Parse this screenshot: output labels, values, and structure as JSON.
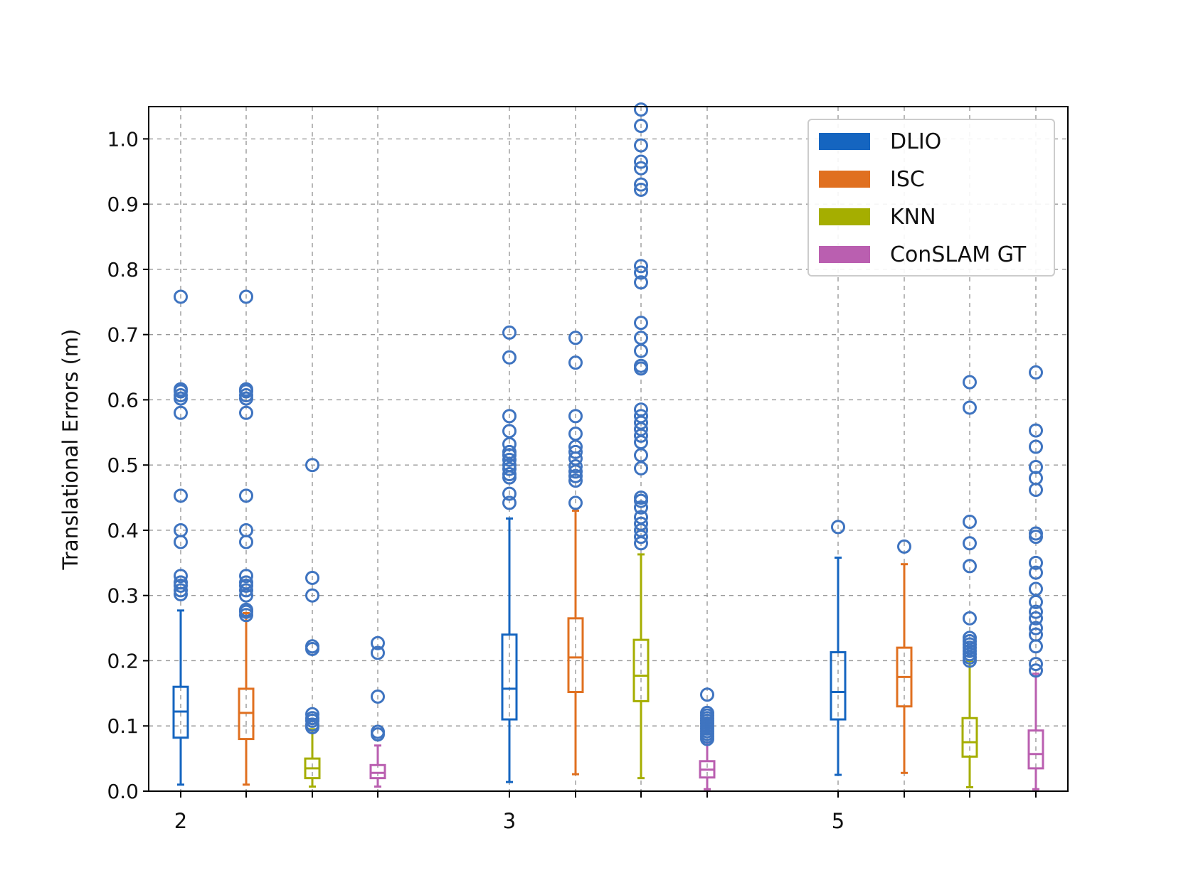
{
  "chart_data": {
    "type": "boxplot",
    "title": "",
    "xlabel": "",
    "ylabel": "Translational Errors (m)",
    "ylim": [
      0.0,
      1.05
    ],
    "y_ticks": [
      "0.0",
      "0.1",
      "0.2",
      "0.3",
      "0.4",
      "0.5",
      "0.6",
      "0.7",
      "0.8",
      "0.9",
      "1.0"
    ],
    "grid": true,
    "legend_position": "top-right",
    "groups": [
      "2",
      "3",
      "5"
    ],
    "series": [
      {
        "name": "DLIO",
        "color": "#1565C0",
        "boxes": [
          {
            "whislo": 0.01,
            "q1": 0.082,
            "med": 0.122,
            "q3": 0.16,
            "whishi": 0.277,
            "fliers": [
              0.302,
              0.308,
              0.315,
              0.32,
              0.33,
              0.382,
              0.4,
              0.453,
              0.58,
              0.602,
              0.607,
              0.613,
              0.616,
              0.758
            ]
          },
          {
            "whislo": 0.014,
            "q1": 0.11,
            "med": 0.157,
            "q3": 0.24,
            "whishi": 0.418,
            "fliers": [
              0.442,
              0.456,
              0.481,
              0.486,
              0.494,
              0.5,
              0.508,
              0.515,
              0.52,
              0.532,
              0.552,
              0.575,
              0.665,
              0.703
            ]
          },
          {
            "whislo": 0.025,
            "q1": 0.11,
            "med": 0.152,
            "q3": 0.213,
            "whishi": 0.358,
            "fliers": [
              0.405
            ]
          }
        ]
      },
      {
        "name": "ISC",
        "color": "#E07020",
        "boxes": [
          {
            "whislo": 0.01,
            "q1": 0.08,
            "med": 0.12,
            "q3": 0.157,
            "whishi": 0.273,
            "fliers": [
              0.27,
              0.275,
              0.278,
              0.3,
              0.308,
              0.315,
              0.32,
              0.33,
              0.382,
              0.4,
              0.453,
              0.58,
              0.602,
              0.607,
              0.613,
              0.616,
              0.758
            ]
          },
          {
            "whislo": 0.026,
            "q1": 0.152,
            "med": 0.205,
            "q3": 0.265,
            "whishi": 0.43,
            "fliers": [
              0.442,
              0.476,
              0.483,
              0.49,
              0.498,
              0.51,
              0.52,
              0.528,
              0.548,
              0.575,
              0.657,
              0.695
            ]
          },
          {
            "whislo": 0.028,
            "q1": 0.13,
            "med": 0.175,
            "q3": 0.22,
            "whishi": 0.348,
            "fliers": [
              0.375
            ]
          }
        ]
      },
      {
        "name": "KNN",
        "color": "#A5AE00",
        "boxes": [
          {
            "whislo": 0.007,
            "q1": 0.02,
            "med": 0.035,
            "q3": 0.05,
            "whishi": 0.095,
            "fliers": [
              0.098,
              0.102,
              0.108,
              0.112,
              0.118,
              0.218,
              0.222,
              0.3,
              0.327,
              0.5
            ]
          },
          {
            "whislo": 0.02,
            "q1": 0.138,
            "med": 0.177,
            "q3": 0.232,
            "whishi": 0.363,
            "fliers": [
              0.38,
              0.39,
              0.4,
              0.41,
              0.42,
              0.435,
              0.445,
              0.45,
              0.495,
              0.515,
              0.535,
              0.545,
              0.555,
              0.565,
              0.575,
              0.585,
              0.648,
              0.652,
              0.675,
              0.695,
              0.718,
              0.78,
              0.795,
              0.805,
              0.922,
              0.93,
              0.955,
              0.965,
              0.99,
              1.02,
              1.045
            ]
          },
          {
            "whislo": 0.006,
            "q1": 0.053,
            "med": 0.075,
            "q3": 0.112,
            "whishi": 0.2,
            "fliers": [
              0.2,
              0.205,
              0.21,
              0.215,
              0.22,
              0.225,
              0.23,
              0.235,
              0.265,
              0.345,
              0.38,
              0.413,
              0.588,
              0.627
            ]
          }
        ]
      },
      {
        "name": "ConSLAM GT",
        "color": "#BA5FB0",
        "boxes": [
          {
            "whislo": 0.007,
            "q1": 0.02,
            "med": 0.028,
            "q3": 0.04,
            "whishi": 0.07,
            "fliers": [
              0.087,
              0.091,
              0.145,
              0.212,
              0.227
            ]
          },
          {
            "whislo": 0.003,
            "q1": 0.021,
            "med": 0.033,
            "q3": 0.046,
            "whishi": 0.075,
            "fliers": [
              0.08,
              0.084,
              0.088,
              0.092,
              0.096,
              0.1,
              0.104,
              0.108,
              0.112,
              0.116,
              0.12,
              0.148
            ]
          },
          {
            "whislo": 0.003,
            "q1": 0.035,
            "med": 0.057,
            "q3": 0.093,
            "whishi": 0.18,
            "fliers": [
              0.185,
              0.195,
              0.222,
              0.24,
              0.25,
              0.265,
              0.275,
              0.29,
              0.31,
              0.335,
              0.35,
              0.39,
              0.395,
              0.462,
              0.48,
              0.497,
              0.528,
              0.553,
              0.642
            ]
          }
        ]
      }
    ]
  }
}
